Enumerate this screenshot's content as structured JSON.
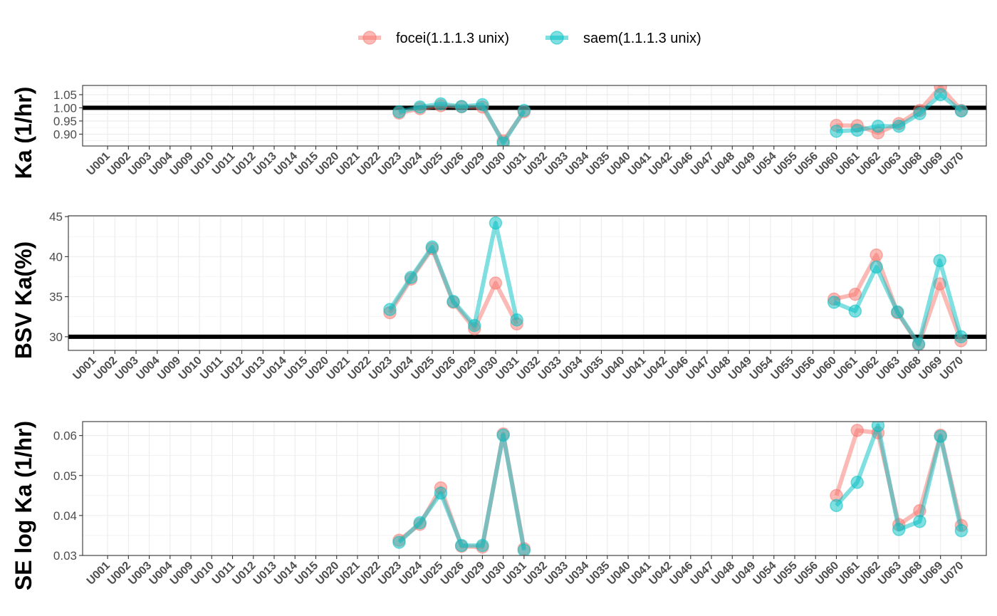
{
  "legend": {
    "items": [
      {
        "label": "focei(1.1.1.3 unix)",
        "color": "#F8766D"
      },
      {
        "label": "saem(1.1.1.3 unix)",
        "color": "#00BFC4"
      }
    ]
  },
  "chart_data": [
    {
      "type": "line",
      "ylabel": "Ka (1/hr)",
      "ylim": [
        0.855,
        1.085
      ],
      "yticks": [
        0.9,
        0.95,
        1.0,
        1.05
      ],
      "ytick_labels": [
        "0.90",
        "0.95",
        "1.00",
        "1.05"
      ],
      "reference_line": 1.0,
      "grid": true,
      "categories": [
        "U001",
        "U002",
        "U003",
        "U004",
        "U009",
        "U010",
        "U011",
        "U012",
        "U013",
        "U014",
        "U015",
        "U020",
        "U021",
        "U022",
        "U023",
        "U024",
        "U025",
        "U026",
        "U029",
        "U030",
        "U031",
        "U032",
        "U033",
        "U034",
        "U035",
        "U040",
        "U041",
        "U042",
        "U046",
        "U047",
        "U048",
        "U049",
        "U054",
        "U055",
        "U056",
        "U060",
        "U061",
        "U062",
        "U063",
        "U068",
        "U069",
        "U070"
      ],
      "series": [
        {
          "name": "focei(1.1.1.3 unix)",
          "color": "#F8766D",
          "values": [
            null,
            null,
            null,
            null,
            null,
            null,
            null,
            null,
            null,
            null,
            null,
            null,
            null,
            null,
            0.98,
            0.997,
            1.008,
            1.004,
            1.003,
            0.874,
            0.985,
            null,
            null,
            null,
            null,
            null,
            null,
            null,
            null,
            null,
            null,
            null,
            null,
            null,
            null,
            0.933,
            0.932,
            0.905,
            0.94,
            0.99,
            1.08,
            0.99
          ]
        },
        {
          "name": "saem(1.1.1.3 unix)",
          "color": "#00BFC4",
          "values": [
            null,
            null,
            null,
            null,
            null,
            null,
            null,
            null,
            null,
            null,
            null,
            null,
            null,
            null,
            0.985,
            1.003,
            1.015,
            1.005,
            1.012,
            0.866,
            0.99,
            null,
            null,
            null,
            null,
            null,
            null,
            null,
            null,
            null,
            null,
            null,
            null,
            null,
            null,
            0.911,
            0.915,
            0.93,
            0.93,
            0.978,
            1.05,
            0.988
          ]
        }
      ]
    },
    {
      "type": "line",
      "ylabel": "BSV Ka(%)",
      "ylim": [
        28.3,
        45.1
      ],
      "yticks": [
        30,
        35,
        40,
        45
      ],
      "ytick_labels": [
        "30",
        "35",
        "40",
        "45"
      ],
      "reference_line": 30,
      "grid": true,
      "categories": [
        "U001",
        "U002",
        "U003",
        "U004",
        "U009",
        "U010",
        "U011",
        "U012",
        "U013",
        "U014",
        "U015",
        "U020",
        "U021",
        "U022",
        "U023",
        "U024",
        "U025",
        "U026",
        "U029",
        "U030",
        "U031",
        "U032",
        "U033",
        "U034",
        "U035",
        "U040",
        "U041",
        "U042",
        "U046",
        "U047",
        "U048",
        "U049",
        "U054",
        "U055",
        "U056",
        "U060",
        "U061",
        "U062",
        "U063",
        "U068",
        "U069",
        "U070"
      ],
      "series": [
        {
          "name": "focei(1.1.1.3 unix)",
          "color": "#F8766D",
          "values": [
            null,
            null,
            null,
            null,
            null,
            null,
            null,
            null,
            null,
            null,
            null,
            null,
            null,
            null,
            33.0,
            37.2,
            41.0,
            34.3,
            31.0,
            36.7,
            31.6,
            null,
            null,
            null,
            null,
            null,
            null,
            null,
            null,
            null,
            null,
            null,
            null,
            null,
            null,
            34.7,
            35.3,
            40.2,
            33.0,
            29.0,
            36.6,
            29.5
          ]
        },
        {
          "name": "saem(1.1.1.3 unix)",
          "color": "#00BFC4",
          "values": [
            null,
            null,
            null,
            null,
            null,
            null,
            null,
            null,
            null,
            null,
            null,
            null,
            null,
            null,
            33.4,
            37.4,
            41.2,
            34.4,
            31.4,
            44.2,
            32.1,
            null,
            null,
            null,
            null,
            null,
            null,
            null,
            null,
            null,
            null,
            null,
            null,
            null,
            null,
            34.3,
            33.2,
            38.7,
            33.1,
            29.1,
            39.5,
            30.0
          ]
        }
      ]
    },
    {
      "type": "line",
      "ylabel": "SE log Ka (1/hr)",
      "ylim": [
        0.03,
        0.0635
      ],
      "yticks": [
        0.03,
        0.04,
        0.05,
        0.06
      ],
      "ytick_labels": [
        "0.03",
        "0.04",
        "0.05",
        "0.06"
      ],
      "grid": true,
      "categories": [
        "U001",
        "U002",
        "U003",
        "U004",
        "U009",
        "U010",
        "U011",
        "U012",
        "U013",
        "U014",
        "U015",
        "U020",
        "U021",
        "U022",
        "U023",
        "U024",
        "U025",
        "U026",
        "U029",
        "U030",
        "U031",
        "U032",
        "U033",
        "U034",
        "U035",
        "U040",
        "U041",
        "U042",
        "U046",
        "U047",
        "U048",
        "U049",
        "U054",
        "U055",
        "U056",
        "U060",
        "U061",
        "U062",
        "U063",
        "U068",
        "U069",
        "U070"
      ],
      "series": [
        {
          "name": "focei(1.1.1.3 unix)",
          "color": "#F8766D",
          "values": [
            null,
            null,
            null,
            null,
            null,
            null,
            null,
            null,
            null,
            null,
            null,
            null,
            null,
            null,
            0.0338,
            0.0378,
            0.0469,
            0.0323,
            0.0321,
            0.0604,
            0.0317,
            null,
            null,
            null,
            null,
            null,
            null,
            null,
            null,
            null,
            null,
            null,
            null,
            null,
            null,
            0.045,
            0.0613,
            0.0607,
            0.0377,
            0.0412,
            0.0601,
            0.0375
          ]
        },
        {
          "name": "saem(1.1.1.3 unix)",
          "color": "#00BFC4",
          "values": [
            null,
            null,
            null,
            null,
            null,
            null,
            null,
            null,
            null,
            null,
            null,
            null,
            null,
            null,
            0.0333,
            0.0382,
            0.0456,
            0.0325,
            0.0325,
            0.0601,
            0.0313,
            null,
            null,
            null,
            null,
            null,
            null,
            null,
            null,
            null,
            null,
            null,
            null,
            null,
            null,
            0.0425,
            0.0483,
            0.0625,
            0.0365,
            0.0385,
            0.0598,
            0.0362
          ]
        }
      ]
    }
  ]
}
